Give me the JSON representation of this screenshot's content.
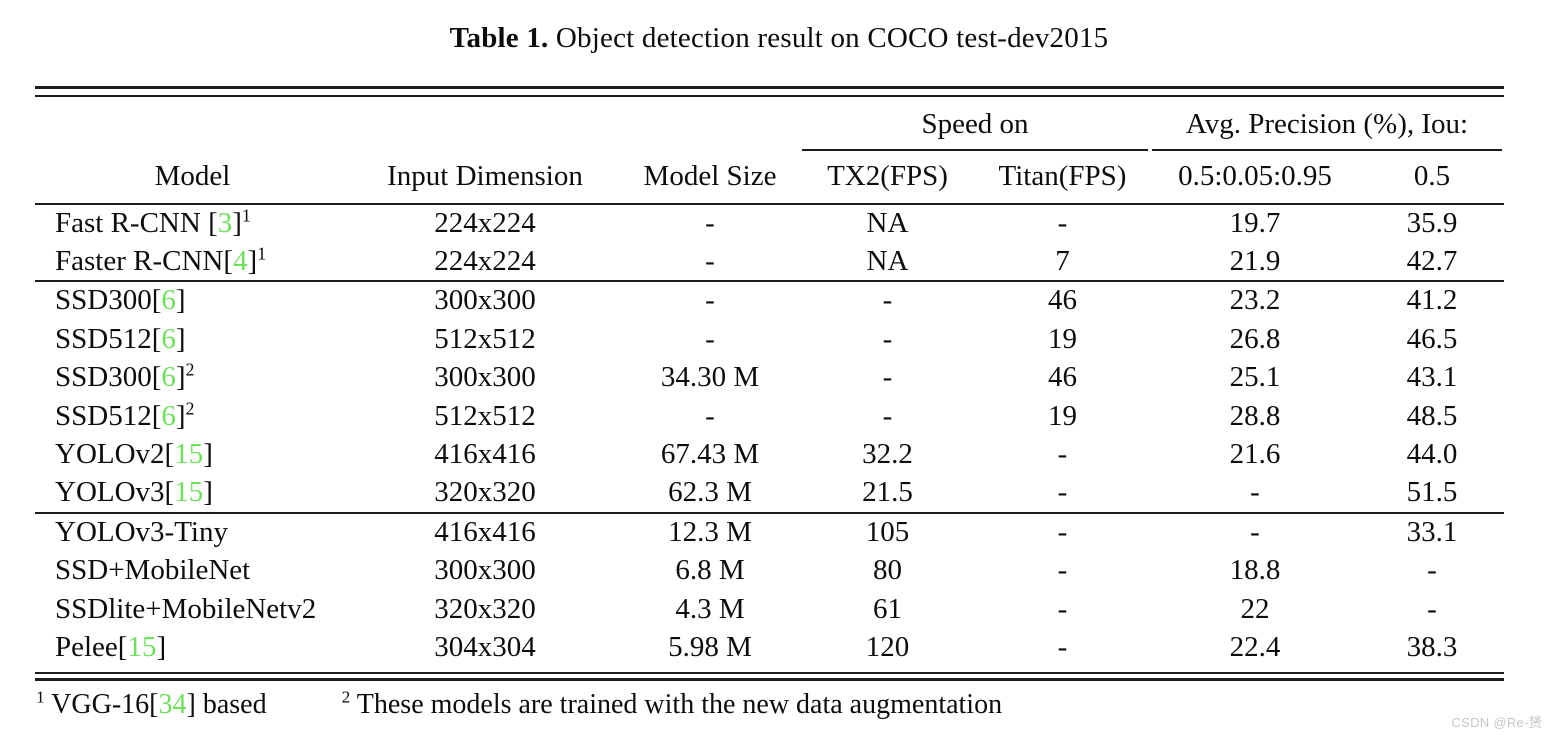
{
  "title": {
    "bold": "Table 1.",
    "rest": " Object detection result on COCO test-dev2015"
  },
  "colors": {
    "citation_green": "#6ee05c",
    "rule_color": "#1c1c1c",
    "watermark_gray": "#c6c6c6"
  },
  "table": {
    "group_headers": {
      "speed": "Speed on",
      "precision": "Avg. Precision (%), Iou:"
    },
    "columns": [
      "Model",
      "Input Dimension",
      "Model Size",
      "TX2(FPS)",
      "Titan(FPS)",
      "0.5:0.05:0.95",
      "0.5"
    ],
    "sections": [
      {
        "rows": [
          {
            "model": {
              "prefix": "Fast R-CNN [",
              "cite": "3",
              "suffix": "]",
              "sup": "1"
            },
            "dims": "224x224",
            "size": "-",
            "tx2": "NA",
            "titan": "-",
            "ap_full": "19.7",
            "ap_05": "35.9"
          },
          {
            "model": {
              "prefix": "Faster R-CNN[",
              "cite": "4",
              "suffix": "]",
              "sup": "1"
            },
            "dims": "224x224",
            "size": "-",
            "tx2": "NA",
            "titan": "7",
            "ap_full": "21.9",
            "ap_05": "42.7"
          }
        ]
      },
      {
        "rows": [
          {
            "model": {
              "prefix": "SSD300[",
              "cite": "6",
              "suffix": "]",
              "sup": ""
            },
            "dims": "300x300",
            "size": "-",
            "tx2": "-",
            "titan": "46",
            "ap_full": "23.2",
            "ap_05": "41.2"
          },
          {
            "model": {
              "prefix": "SSD512[",
              "cite": "6",
              "suffix": "]",
              "sup": ""
            },
            "dims": "512x512",
            "size": "-",
            "tx2": "-",
            "titan": "19",
            "ap_full": "26.8",
            "ap_05": "46.5"
          },
          {
            "model": {
              "prefix": "SSD300[",
              "cite": "6",
              "suffix": "]",
              "sup": "2"
            },
            "dims": "300x300",
            "size": "34.30 M",
            "tx2": "-",
            "titan": "46",
            "ap_full": "25.1",
            "ap_05": "43.1"
          },
          {
            "model": {
              "prefix": "SSD512[",
              "cite": "6",
              "suffix": "]",
              "sup": "2"
            },
            "dims": "512x512",
            "size": "-",
            "tx2": "-",
            "titan": "19",
            "ap_full": "28.8",
            "ap_05": "48.5"
          },
          {
            "model": {
              "prefix": "YOLOv2[",
              "cite": "15",
              "suffix": "]",
              "sup": ""
            },
            "dims": "416x416",
            "size": "67.43 M",
            "tx2": "32.2",
            "titan": "-",
            "ap_full": "21.6",
            "ap_05": "44.0"
          },
          {
            "model": {
              "prefix": "YOLOv3[",
              "cite": "15",
              "suffix": "]",
              "sup": ""
            },
            "dims": "320x320",
            "size": "62.3 M",
            "tx2": "21.5",
            "titan": "-",
            "ap_full": "-",
            "ap_05": "51.5"
          }
        ]
      },
      {
        "rows": [
          {
            "model": {
              "prefix": "YOLOv3-Tiny",
              "cite": "",
              "suffix": "",
              "sup": ""
            },
            "dims": "416x416",
            "size": "12.3 M",
            "tx2": "105",
            "titan": "-",
            "ap_full": "-",
            "ap_05": "33.1"
          },
          {
            "model": {
              "prefix": "SSD+MobileNet",
              "cite": "",
              "suffix": "",
              "sup": ""
            },
            "dims": "300x300",
            "size": "6.8 M",
            "tx2": "80",
            "titan": "-",
            "ap_full": "18.8",
            "ap_05": "-"
          },
          {
            "model": {
              "prefix": "SSDlite+MobileNetv2",
              "cite": "",
              "suffix": "",
              "sup": ""
            },
            "dims": "320x320",
            "size": "4.3 M",
            "tx2": "61",
            "titan": "-",
            "ap_full": "22",
            "ap_05": "-"
          },
          {
            "model": {
              "prefix": "Pelee[",
              "cite": "15",
              "suffix": "]",
              "sup": ""
            },
            "dims": "304x304",
            "size": "5.98 M",
            "tx2": "120",
            "titan": "-",
            "ap_full": "22.4",
            "ap_05": "38.3"
          }
        ]
      }
    ]
  },
  "footnotes": [
    {
      "sup": "1",
      "prefix": " VGG-16[",
      "cite": "34",
      "suffix": "] based"
    },
    {
      "sup": "2",
      "prefix": " These models are trained with the new data augmentation",
      "cite": "",
      "suffix": ""
    }
  ],
  "watermark": "CSDN @Re-赟"
}
